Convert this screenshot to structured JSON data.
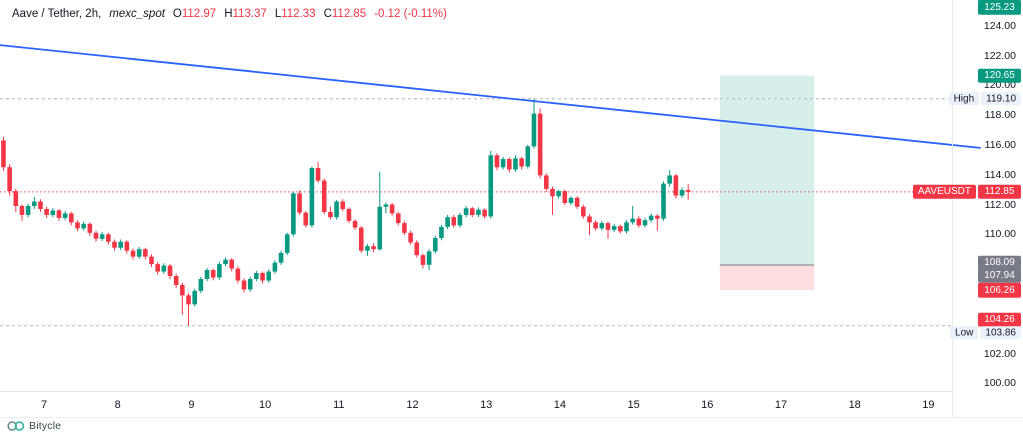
{
  "legend": {
    "symbol_title": "Aave / Tether, 2h,",
    "exchange": "mexc_spot",
    "o_label": "O",
    "o_value": "112.97",
    "h_label": "H",
    "h_value": "113.37",
    "l_label": "L",
    "l_value": "112.33",
    "c_label": "C",
    "c_value": "112.85",
    "change": "-0.12 (-0.11%)"
  },
  "watermark": {
    "text": "Bitycle"
  },
  "price_axis": {
    "ticks": [
      "124.00",
      "122.00",
      "120.00",
      "118.00",
      "116.00",
      "114.00",
      "112.00",
      "110.00",
      "108.00",
      "106.00",
      "104.00",
      "102.00",
      "100.00"
    ],
    "badges": [
      {
        "text": "125.23",
        "color": "green"
      },
      {
        "text": "120.65",
        "color": "green"
      },
      {
        "text": "112.85",
        "color": "red",
        "symbol": "AAVEUSDT"
      },
      {
        "text": "108.09",
        "color": "gray"
      },
      {
        "text": "107.94",
        "color": "gray"
      },
      {
        "text": "106.26",
        "color": "red"
      },
      {
        "text": "104.26",
        "color": "red"
      }
    ],
    "high": {
      "label": "High",
      "value": "119.10"
    },
    "low": {
      "label": "Low",
      "value": "103.86"
    }
  },
  "time_axis": {
    "labels": [
      "7",
      "8",
      "9",
      "10",
      "11",
      "12",
      "13",
      "14",
      "15",
      "16",
      "17",
      "18",
      "19"
    ]
  },
  "chart_data": {
    "type": "candlestick",
    "pair_name": "Aave / Tether",
    "symbol": "AAVEUSDT",
    "interval": "2h",
    "exchange": "mexc_spot",
    "last_candle": {
      "open": 112.97,
      "high": 113.37,
      "low": 112.33,
      "close": 112.85,
      "change": -0.12,
      "change_pct": -0.11
    },
    "session_high": 119.1,
    "session_low": 103.86,
    "current_price": 112.85,
    "x_axis_days": [
      7,
      8,
      9,
      10,
      11,
      12,
      13,
      14,
      15,
      16,
      17,
      18,
      19
    ],
    "first_candle_day": 6.45,
    "candle_step_days": 0.0837,
    "colors": {
      "up": "#089981",
      "down": "#F23645",
      "trendline": "#2962FF",
      "current_price_line": "#F23645",
      "level_line": "#B2B5BE",
      "profit_fill": "rgba(8,153,129,0.16)",
      "loss_fill": "rgba(242,54,69,0.16)",
      "zone_divider": "#787B86"
    },
    "trendline": {
      "start": {
        "day": 6.4,
        "price": 122.7
      },
      "end": {
        "day": 19.7,
        "price": 115.8
      }
    },
    "position_tool": {
      "day_start": 16.17,
      "day_end": 17.45,
      "target_price": 120.65,
      "entry_price": 107.94,
      "stop_price": 106.26
    },
    "candles": [
      [
        116.3,
        116.55,
        114.25,
        114.5
      ],
      [
        114.5,
        114.7,
        112.6,
        112.9
      ],
      [
        112.9,
        113.05,
        111.5,
        111.9
      ],
      [
        111.9,
        112.0,
        110.9,
        111.3
      ],
      [
        111.3,
        112.05,
        111.15,
        111.9
      ],
      [
        111.9,
        112.5,
        111.7,
        112.2
      ],
      [
        112.2,
        112.35,
        111.5,
        111.7
      ],
      [
        111.7,
        111.85,
        111.1,
        111.3
      ],
      [
        111.3,
        111.75,
        111.15,
        111.6
      ],
      [
        111.6,
        111.7,
        110.9,
        111.1
      ],
      [
        111.1,
        111.55,
        110.95,
        111.4
      ],
      [
        111.4,
        111.5,
        110.6,
        110.8
      ],
      [
        110.8,
        110.95,
        110.2,
        110.4
      ],
      [
        110.4,
        110.85,
        110.25,
        110.7
      ],
      [
        110.7,
        110.8,
        109.9,
        110.1
      ],
      [
        110.1,
        110.25,
        109.5,
        109.7
      ],
      [
        109.7,
        110.15,
        109.55,
        110.0
      ],
      [
        110.0,
        110.1,
        109.3,
        109.5
      ],
      [
        109.5,
        109.65,
        108.9,
        109.1
      ],
      [
        109.1,
        109.65,
        108.95,
        109.5
      ],
      [
        109.5,
        109.6,
        108.7,
        108.9
      ],
      [
        108.9,
        109.05,
        108.3,
        108.5
      ],
      [
        108.5,
        109.15,
        108.35,
        109.0
      ],
      [
        109.0,
        109.1,
        108.3,
        108.5
      ],
      [
        108.5,
        108.65,
        107.8,
        108.0
      ],
      [
        108.0,
        108.15,
        107.3,
        107.5
      ],
      [
        107.5,
        108.05,
        107.35,
        107.9
      ],
      [
        107.9,
        108.0,
        107.0,
        107.2
      ],
      [
        107.2,
        107.35,
        106.4,
        106.6
      ],
      [
        106.6,
        106.75,
        104.6,
        105.9
      ],
      [
        105.9,
        106.05,
        103.86,
        105.3
      ],
      [
        105.3,
        106.35,
        105.15,
        106.2
      ],
      [
        106.2,
        107.15,
        106.05,
        107.0
      ],
      [
        107.0,
        107.75,
        106.85,
        107.6
      ],
      [
        107.6,
        107.7,
        106.9,
        107.1
      ],
      [
        107.1,
        108.15,
        106.95,
        108.0
      ],
      [
        108.0,
        108.45,
        107.85,
        108.3
      ],
      [
        108.3,
        108.4,
        107.5,
        107.7
      ],
      [
        107.7,
        107.85,
        106.7,
        106.9
      ],
      [
        106.9,
        107.05,
        106.1,
        106.3
      ],
      [
        106.3,
        107.15,
        106.15,
        107.0
      ],
      [
        107.0,
        107.55,
        106.85,
        107.4
      ],
      [
        107.4,
        107.5,
        106.7,
        106.9
      ],
      [
        106.9,
        107.65,
        106.75,
        107.5
      ],
      [
        107.5,
        108.25,
        107.35,
        108.1
      ],
      [
        108.1,
        108.9,
        107.95,
        108.75
      ],
      [
        108.75,
        110.1,
        108.6,
        110.0
      ],
      [
        110.0,
        112.85,
        109.85,
        112.75
      ],
      [
        112.75,
        112.95,
        111.3,
        111.45
      ],
      [
        111.45,
        111.55,
        110.45,
        110.6
      ],
      [
        110.6,
        114.55,
        110.45,
        114.45
      ],
      [
        114.45,
        114.85,
        113.45,
        113.6
      ],
      [
        113.6,
        113.75,
        111.35,
        111.5
      ],
      [
        111.5,
        111.85,
        111.0,
        111.15
      ],
      [
        111.15,
        112.3,
        111.0,
        112.2
      ],
      [
        112.2,
        112.35,
        111.55,
        111.7
      ],
      [
        111.7,
        111.8,
        110.75,
        110.9
      ],
      [
        110.9,
        111.0,
        110.3,
        110.45
      ],
      [
        110.45,
        110.55,
        108.75,
        108.9
      ],
      [
        108.9,
        109.35,
        108.55,
        109.2
      ],
      [
        109.2,
        109.4,
        108.8,
        109.0
      ],
      [
        109.0,
        114.2,
        108.9,
        111.85
      ],
      [
        111.85,
        112.15,
        111.4,
        112.0
      ],
      [
        112.0,
        112.1,
        111.25,
        111.4
      ],
      [
        111.4,
        111.5,
        110.6,
        110.75
      ],
      [
        110.75,
        110.9,
        109.95,
        110.1
      ],
      [
        110.1,
        110.25,
        109.3,
        109.45
      ],
      [
        109.45,
        109.6,
        108.45,
        108.6
      ],
      [
        108.6,
        108.7,
        107.7,
        107.95
      ],
      [
        107.95,
        109.0,
        107.6,
        108.85
      ],
      [
        108.85,
        109.9,
        108.7,
        109.75
      ],
      [
        109.75,
        110.65,
        109.6,
        110.5
      ],
      [
        110.5,
        111.3,
        110.35,
        111.15
      ],
      [
        111.15,
        111.3,
        110.45,
        110.6
      ],
      [
        110.6,
        111.45,
        110.45,
        111.3
      ],
      [
        111.3,
        111.9,
        111.15,
        111.75
      ],
      [
        111.75,
        111.85,
        111.15,
        111.3
      ],
      [
        111.3,
        111.8,
        111.15,
        111.65
      ],
      [
        111.65,
        111.75,
        111.05,
        111.2
      ],
      [
        111.2,
        115.6,
        111.05,
        115.3
      ],
      [
        115.3,
        115.45,
        114.3,
        114.5
      ],
      [
        114.5,
        115.2,
        114.35,
        115.05
      ],
      [
        115.05,
        115.15,
        114.15,
        114.35
      ],
      [
        114.35,
        115.3,
        114.2,
        115.1
      ],
      [
        115.1,
        115.2,
        114.35,
        114.55
      ],
      [
        114.55,
        116.0,
        114.4,
        115.9
      ],
      [
        115.9,
        119.1,
        115.75,
        118.1
      ],
      [
        118.1,
        118.45,
        113.75,
        113.95
      ],
      [
        113.95,
        114.1,
        112.85,
        113.05
      ],
      [
        113.05,
        113.2,
        111.3,
        112.55
      ],
      [
        112.55,
        113.0,
        112.4,
        112.9
      ],
      [
        112.9,
        113.0,
        111.95,
        112.1
      ],
      [
        112.1,
        112.55,
        111.95,
        112.45
      ],
      [
        112.45,
        112.55,
        111.7,
        111.85
      ],
      [
        111.85,
        112.0,
        111.05,
        111.2
      ],
      [
        111.2,
        111.35,
        109.95,
        110.8
      ],
      [
        110.8,
        110.95,
        110.25,
        110.4
      ],
      [
        110.4,
        110.9,
        110.25,
        110.75
      ],
      [
        110.75,
        110.85,
        109.7,
        110.3
      ],
      [
        110.3,
        110.7,
        110.15,
        110.55
      ],
      [
        110.55,
        110.65,
        110.05,
        110.2
      ],
      [
        110.2,
        110.95,
        110.05,
        110.8
      ],
      [
        110.8,
        111.9,
        110.65,
        111.05
      ],
      [
        111.05,
        111.2,
        110.45,
        110.6
      ],
      [
        110.6,
        111.1,
        110.45,
        110.95
      ],
      [
        110.95,
        111.4,
        110.8,
        111.25
      ],
      [
        111.25,
        111.35,
        110.25,
        111.05
      ],
      [
        111.05,
        113.55,
        110.9,
        113.4
      ],
      [
        113.4,
        114.3,
        113.2,
        113.95
      ],
      [
        113.95,
        114.05,
        112.4,
        112.6
      ],
      [
        112.6,
        113.15,
        112.45,
        112.97
      ],
      [
        112.97,
        113.37,
        112.33,
        112.85
      ]
    ]
  }
}
